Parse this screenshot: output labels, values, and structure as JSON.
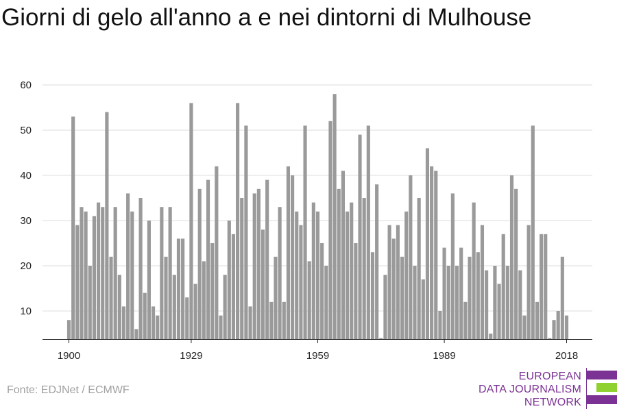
{
  "title": "Giorni di gelo all'anno a e nei dintorni di Mulhouse",
  "source": "Fonte: EDJNet / ECMWF",
  "logo": {
    "lines": [
      "EUROPEAN",
      "DATA JOURNALISM",
      "NETWORK"
    ],
    "colors": {
      "purple": "#7b3294",
      "green": "#8fd12f"
    }
  },
  "chart_data": {
    "type": "bar",
    "title": "Giorni di gelo all'anno a e nei dintorni di Mulhouse",
    "xlabel": "",
    "ylabel": "",
    "ylim": [
      3,
      62
    ],
    "yticks": [
      10,
      20,
      30,
      40,
      50,
      60
    ],
    "xticks": [
      1900,
      1929,
      1959,
      1989,
      2018
    ],
    "grid": true,
    "bar_color": "#9a9a9a",
    "x": [
      1900,
      1901,
      1902,
      1903,
      1904,
      1905,
      1906,
      1907,
      1908,
      1909,
      1910,
      1911,
      1912,
      1913,
      1914,
      1915,
      1916,
      1917,
      1918,
      1919,
      1920,
      1921,
      1922,
      1923,
      1924,
      1925,
      1926,
      1927,
      1928,
      1929,
      1930,
      1931,
      1932,
      1933,
      1934,
      1935,
      1936,
      1937,
      1938,
      1939,
      1940,
      1941,
      1942,
      1943,
      1944,
      1945,
      1946,
      1947,
      1948,
      1949,
      1950,
      1951,
      1952,
      1953,
      1954,
      1955,
      1956,
      1957,
      1958,
      1959,
      1960,
      1961,
      1962,
      1963,
      1964,
      1965,
      1966,
      1967,
      1968,
      1969,
      1970,
      1971,
      1972,
      1973,
      1974,
      1975,
      1976,
      1977,
      1978,
      1979,
      1980,
      1981,
      1982,
      1983,
      1984,
      1985,
      1986,
      1987,
      1988,
      1989,
      1990,
      1991,
      1992,
      1993,
      1994,
      1995,
      1996,
      1997,
      1998,
      1999,
      2000,
      2001,
      2002,
      2003,
      2004,
      2005,
      2006,
      2007,
      2008,
      2009,
      2010,
      2011,
      2012,
      2013,
      2014,
      2015,
      2016,
      2017,
      2018
    ],
    "values": [
      8,
      53,
      29,
      33,
      32,
      20,
      31,
      34,
      33,
      54,
      22,
      33,
      18,
      11,
      36,
      32,
      6,
      35,
      14,
      30,
      11,
      9,
      33,
      22,
      33,
      18,
      26,
      26,
      13,
      56,
      16,
      37,
      21,
      39,
      25,
      42,
      9,
      18,
      30,
      27,
      56,
      35,
      51,
      11,
      36,
      37,
      28,
      39,
      12,
      22,
      33,
      12,
      42,
      40,
      32,
      29,
      51,
      21,
      34,
      32,
      25,
      20,
      52,
      58,
      37,
      41,
      32,
      34,
      25,
      49,
      35,
      51,
      23,
      38,
      4,
      18,
      29,
      26,
      29,
      22,
      32,
      40,
      20,
      35,
      17,
      46,
      42,
      41,
      10,
      24,
      20,
      36,
      20,
      24,
      12,
      22,
      34,
      23,
      29,
      19,
      5,
      20,
      16,
      27,
      20,
      40,
      37,
      19,
      9,
      29,
      51,
      12,
      27,
      27,
      4,
      8,
      10,
      22,
      9
    ]
  }
}
